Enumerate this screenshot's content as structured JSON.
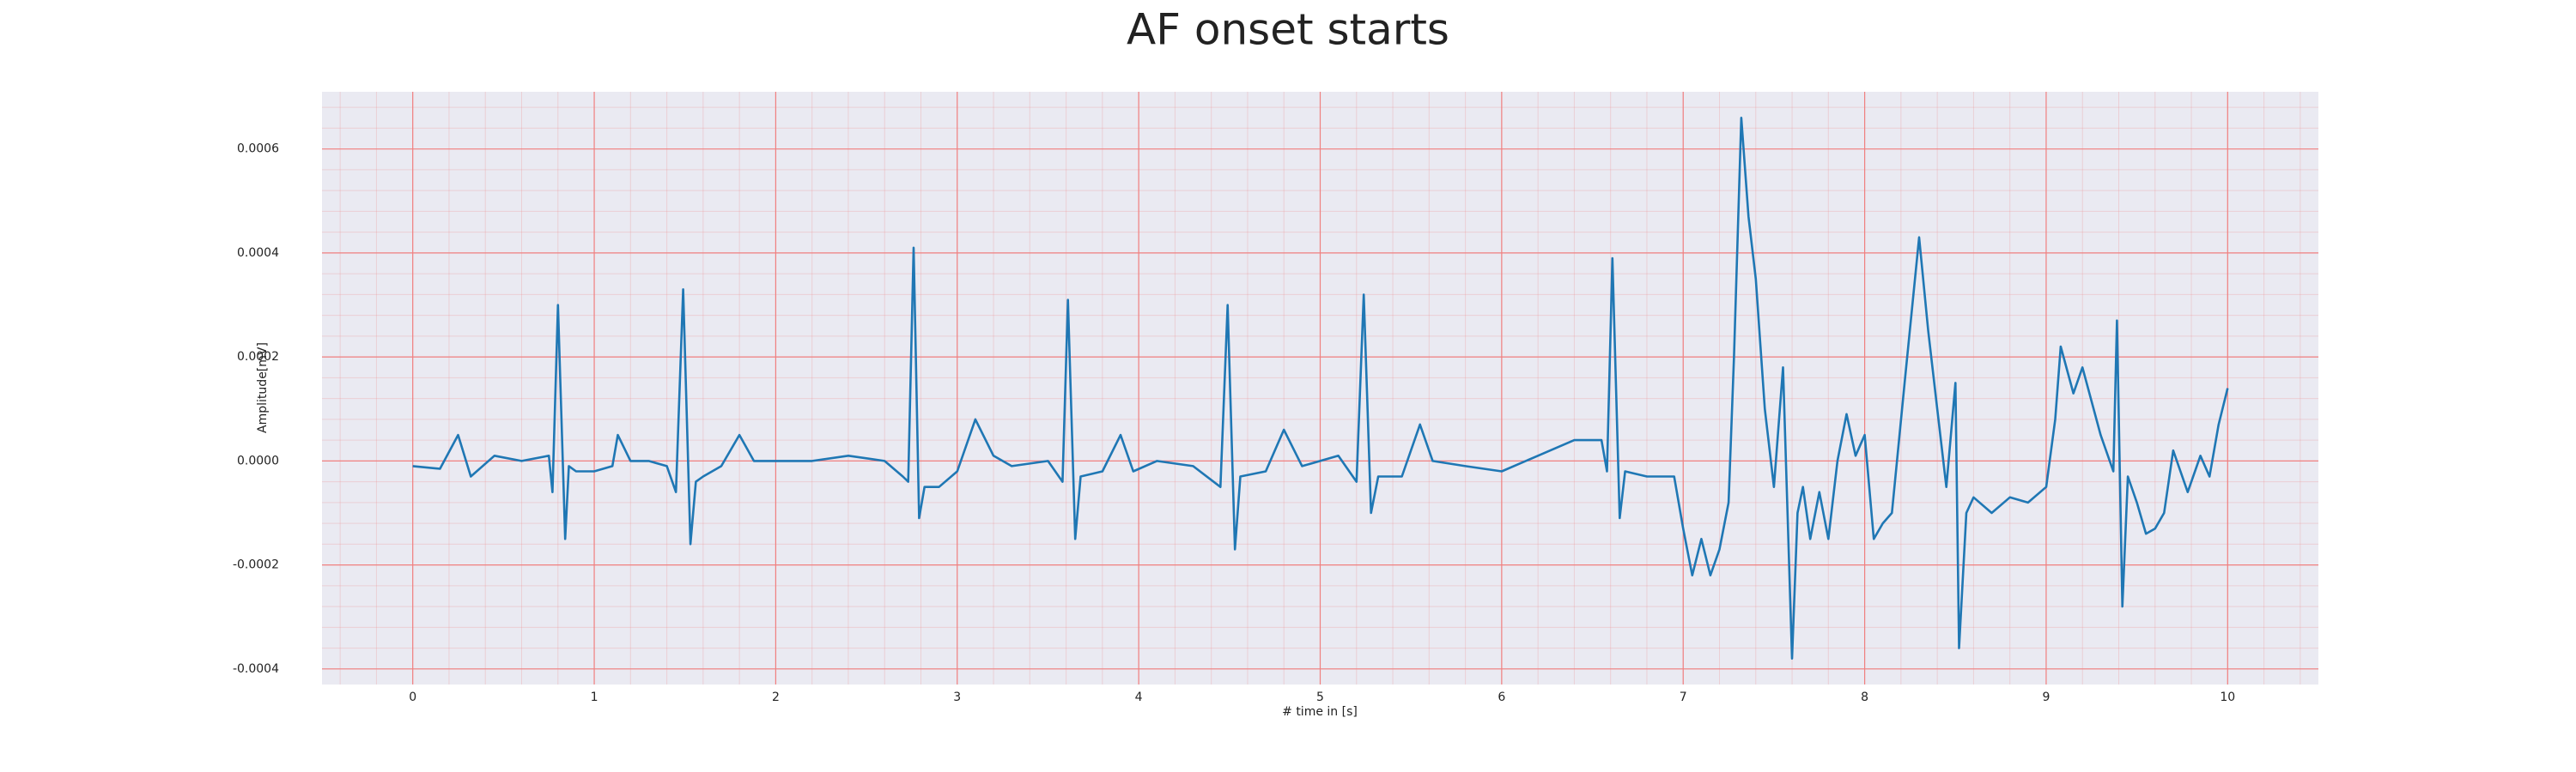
{
  "chart_data": {
    "type": "line",
    "title": "AF onset starts",
    "xlabel": "# time in [s]",
    "ylabel": "Amplitude[mV]",
    "x": [
      0.0,
      0.15,
      0.25,
      0.32,
      0.45,
      0.6,
      0.75,
      0.77,
      0.8,
      0.84,
      0.86,
      0.9,
      1.0,
      1.1,
      1.13,
      1.2,
      1.3,
      1.4,
      1.45,
      1.49,
      1.53,
      1.56,
      1.6,
      1.7,
      1.8,
      1.88,
      2.0,
      2.2,
      2.4,
      2.6,
      2.7,
      2.73,
      2.76,
      2.79,
      2.82,
      2.9,
      3.0,
      3.1,
      3.2,
      3.3,
      3.5,
      3.58,
      3.61,
      3.65,
      3.68,
      3.8,
      3.9,
      3.97,
      4.1,
      4.3,
      4.45,
      4.49,
      4.53,
      4.56,
      4.7,
      4.8,
      4.9,
      5.1,
      5.2,
      5.24,
      5.28,
      5.32,
      5.45,
      5.55,
      5.62,
      5.8,
      6.0,
      6.2,
      6.4,
      6.55,
      6.58,
      6.61,
      6.65,
      6.68,
      6.8,
      6.95,
      7.0,
      7.05,
      7.1,
      7.15,
      7.2,
      7.25,
      7.28,
      7.32,
      7.36,
      7.4,
      7.45,
      7.5,
      7.55,
      7.6,
      7.63,
      7.66,
      7.7,
      7.75,
      7.8,
      7.85,
      7.9,
      7.95,
      8.0,
      8.05,
      8.1,
      8.15,
      8.22,
      8.3,
      8.35,
      8.4,
      8.45,
      8.5,
      8.52,
      8.56,
      8.6,
      8.7,
      8.8,
      8.9,
      9.0,
      9.05,
      9.08,
      9.15,
      9.2,
      9.3,
      9.37,
      9.39,
      9.42,
      9.45,
      9.5,
      9.55,
      9.6,
      9.65,
      9.7,
      9.78,
      9.85,
      9.9,
      9.95,
      10.0
    ],
    "series": [
      {
        "name": "ECG",
        "color": "#1f77b4",
        "values": [
          -1e-05,
          -1.5e-05,
          5e-05,
          -3e-05,
          1e-05,
          0,
          1e-05,
          -6e-05,
          0.0003,
          -0.00015,
          -1e-05,
          -2e-05,
          -2e-05,
          -1e-05,
          5e-05,
          0,
          0,
          -1e-05,
          -6e-05,
          0.00033,
          -0.00016,
          -4e-05,
          -3e-05,
          -1e-05,
          5e-05,
          0,
          0,
          0,
          1e-05,
          0,
          -3e-05,
          -4e-05,
          0.00041,
          -0.00011,
          -5e-05,
          -5e-05,
          -2e-05,
          8e-05,
          1e-05,
          -1e-05,
          0,
          -4e-05,
          0.00031,
          -0.00015,
          -3e-05,
          -2e-05,
          5e-05,
          -2e-05,
          0,
          -1e-05,
          -5e-05,
          0.0003,
          -0.00017,
          -3e-05,
          -2e-05,
          6e-05,
          -1e-05,
          1e-05,
          -4e-05,
          0.00032,
          -0.0001,
          -3e-05,
          -3e-05,
          7e-05,
          0,
          -1e-05,
          -2e-05,
          1e-05,
          4e-05,
          4e-05,
          -2e-05,
          0.00039,
          -0.00011,
          -2e-05,
          -3e-05,
          -3e-05,
          -0.00013,
          -0.00022,
          -0.00015,
          -0.00022,
          -0.00017,
          -8e-05,
          0.0002,
          0.00066,
          0.00047,
          0.00035,
          0.0001,
          -5e-05,
          0.00018,
          -0.00038,
          -0.0001,
          -5e-05,
          -0.00015,
          -6e-05,
          -0.00015,
          0,
          9e-05,
          1e-05,
          5e-05,
          -0.00015,
          -0.00012,
          -0.0001,
          0.00015,
          0.00043,
          0.00025,
          0.0001,
          -5e-05,
          0.00015,
          -0.00036,
          -0.0001,
          -7e-05,
          -0.0001,
          -7e-05,
          -8e-05,
          -5e-05,
          8e-05,
          0.00022,
          0.00013,
          0.00018,
          5e-05,
          -2e-05,
          0.00027,
          -0.00028,
          -3e-05,
          -8e-05,
          -0.00014,
          -0.00013,
          -0.0001,
          2e-05,
          -6e-05,
          1e-05,
          -3e-05,
          7e-05,
          0.00014
        ]
      }
    ],
    "xlim": [
      -0.5,
      10.5
    ],
    "xticks": [
      0,
      1,
      2,
      3,
      4,
      5,
      6,
      7,
      8,
      9,
      10
    ],
    "ylim": [
      -0.00043,
      0.00071
    ],
    "yticks": [
      {
        "value": -0.0004,
        "label": "-0.0004"
      },
      {
        "value": -0.0002,
        "label": "-0.0002"
      },
      {
        "value": 0,
        "label": "0.0000"
      },
      {
        "value": 0.0002,
        "label": "0.0002"
      },
      {
        "value": 0.0004,
        "label": "0.0004"
      },
      {
        "value": 0.0006,
        "label": "0.0006"
      }
    ],
    "grid": true,
    "grid_color": "#f08080",
    "minor_grid": true
  }
}
